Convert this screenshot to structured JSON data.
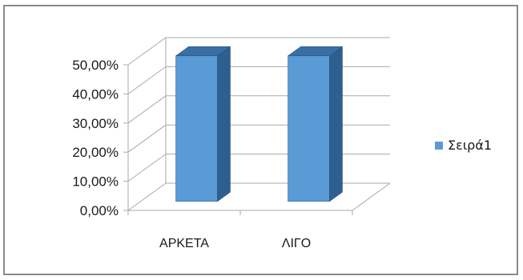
{
  "chart_data": {
    "type": "bar",
    "categories": [
      "ΑΡΚΕΤΑ",
      "ΛΙΓΟ"
    ],
    "series": [
      {
        "name": "Σειρά1",
        "values": [
          50,
          50
        ]
      }
    ],
    "ylim": [
      0,
      50
    ],
    "yticks": [
      0,
      10,
      20,
      30,
      40,
      50
    ],
    "ytick_labels": [
      "0,00%",
      "10,00%",
      "20,00%",
      "30,00%",
      "40,00%",
      "50,00%"
    ],
    "grid": true,
    "legend_position": "right",
    "three_d": true,
    "colors": {
      "bar_front": "#5b9bd5",
      "bar_top": "#3a6fa5",
      "bar_side": "#2e5f91",
      "grid": "#a9a9a9",
      "legend_swatch": "#5b9bd5"
    }
  }
}
